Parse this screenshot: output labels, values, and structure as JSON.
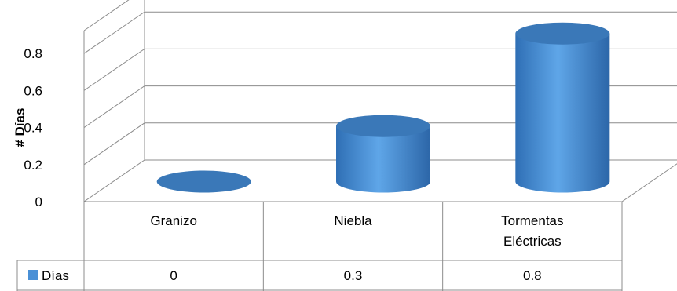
{
  "chart_data": {
    "type": "bar",
    "style": "3d-cylinder",
    "categories": [
      "Granizo",
      "Niebla",
      "Tormentas Eléctricas"
    ],
    "series": [
      {
        "name": "Días",
        "values": [
          0,
          0.3,
          0.8
        ],
        "color": "#4a90d6"
      }
    ],
    "ylabel": "# Días",
    "ylim": [
      0,
      0.8
    ],
    "yticks": [
      0,
      0.2,
      0.4,
      0.6,
      0.8
    ],
    "grid": true,
    "data_table": true
  },
  "data_table": {
    "rows": [
      {
        "legend": "Días",
        "values": [
          "0",
          "0.3",
          "0.8"
        ]
      }
    ]
  }
}
